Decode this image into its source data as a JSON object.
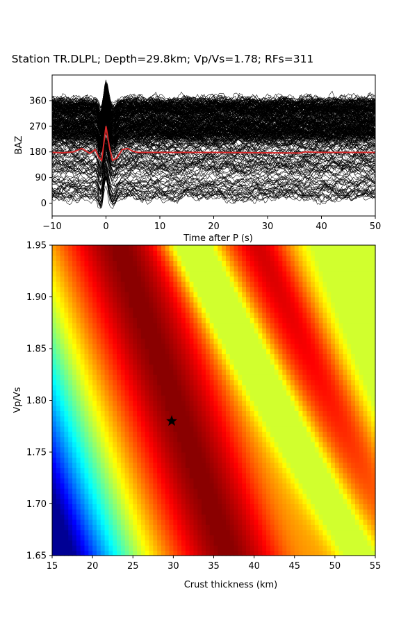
{
  "figure_title": "Station TR.DLPL; Depth=29.8km; Vp/Vs=1.78; RFs=311",
  "chart_data": [
    {
      "type": "line",
      "title": "",
      "xlabel": "Time after P (s)",
      "ylabel": "BAZ",
      "xlim": [
        -10,
        50
      ],
      "ylim": [
        -45,
        450
      ],
      "xticks": [
        "−10",
        "0",
        "10",
        "20",
        "30",
        "40",
        "50"
      ],
      "xtick_values": [
        -10,
        0,
        10,
        20,
        30,
        40,
        50
      ],
      "yticks": [
        "0",
        "90",
        "180",
        "270",
        "360"
      ],
      "ytick_values": [
        0,
        90,
        180,
        270,
        360
      ],
      "trace_count": 311,
      "trace_color": "#000000",
      "stack": {
        "color": "#d62728",
        "baseline": 180,
        "x": [
          -10,
          -8,
          -6,
          -4.5,
          -3,
          -2,
          -1.3,
          -0.8,
          0,
          0.6,
          1.2,
          2,
          3,
          4,
          5,
          6,
          10,
          20,
          30,
          36,
          37,
          40,
          50
        ],
        "y": [
          178,
          177,
          180,
          192,
          175,
          188,
          160,
          150,
          270,
          200,
          150,
          158,
          188,
          192,
          182,
          178,
          178,
          178,
          177,
          176,
          180,
          178,
          178
        ]
      }
    },
    {
      "type": "heatmap",
      "title": "",
      "xlabel": "Crust thickness (km)",
      "ylabel": "Vp/Vs",
      "xlim": [
        15,
        55
      ],
      "ylim": [
        1.65,
        1.95
      ],
      "xticks": [
        "15",
        "20",
        "25",
        "30",
        "35",
        "40",
        "45",
        "50",
        "55"
      ],
      "xtick_values": [
        15,
        20,
        25,
        30,
        35,
        40,
        45,
        50,
        55
      ],
      "yticks": [
        "1.65",
        "1.70",
        "1.75",
        "1.80",
        "1.85",
        "1.90",
        "1.95"
      ],
      "ytick_values": [
        1.65,
        1.7,
        1.75,
        1.8,
        1.85,
        1.9,
        1.95
      ],
      "colormap": "jet",
      "marker": {
        "shape": "star",
        "x": 29.8,
        "y": 1.78,
        "color": "#000000"
      }
    }
  ]
}
